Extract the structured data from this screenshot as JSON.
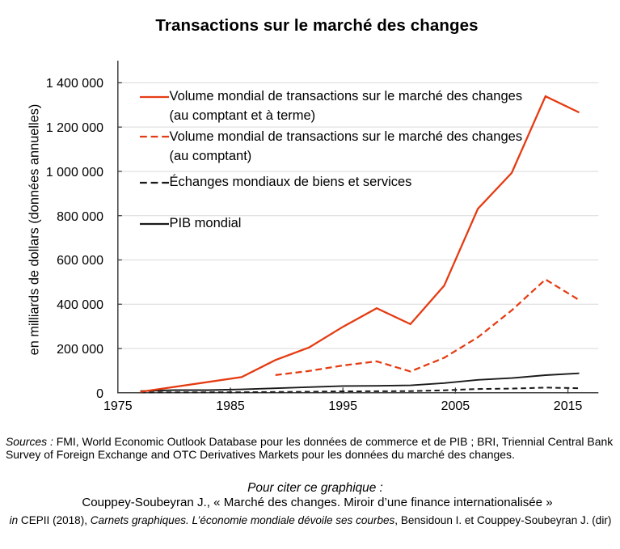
{
  "title": "Transactions sur le marché des changes",
  "colors": {
    "accent_red": "#e53b12",
    "black_line": "#1a1a1a",
    "axis": "#404040",
    "gridline": "#d9d9d9",
    "text": "#000000"
  },
  "y_axis": {
    "label": "en milliards de dollars (données annuelles)",
    "tick_labels": [
      "0",
      "200 000",
      "400 000",
      "600 000",
      "800 000",
      "1 000 000",
      "1 200 000",
      "1 400 000"
    ]
  },
  "x_axis": {
    "tick_labels": [
      "1975",
      "1985",
      "1995",
      "2005",
      "2015"
    ]
  },
  "legend": [
    {
      "lines": [
        "Volume mondial de transactions sur le marché des changes",
        "(au comptant et à terme)"
      ],
      "style": "solid",
      "color": "#e53b12"
    },
    {
      "lines": [
        "Volume mondial de transactions sur le marché des changes",
        "(au comptant)"
      ],
      "style": "dashed",
      "color": "#e53b12"
    },
    {
      "lines": [
        "Échanges mondiaux de biens et services"
      ],
      "style": "dashed",
      "color": "#1a1a1a"
    },
    {
      "lines": [
        "PIB mondial"
      ],
      "style": "solid",
      "color": "#1a1a1a"
    }
  ],
  "footer": {
    "sources_line1_parts": [
      {
        "text": "Sources : ",
        "italic": true
      },
      {
        "text": "FMI, World Economic Outlook Database pour les données de commerce et de PIB ; BRI, Triennial Central Bank",
        "italic": false
      }
    ],
    "sources_line2_parts": [
      {
        "text": "Survey of Foreign Exchange and OTC Derivatives Markets pour les données du marché des changes.",
        "italic": false
      }
    ],
    "cite_heading": "Pour citer ce graphique :",
    "cite_line1": "Couppey-Soubeyran J., « Marché des changes. Miroir d’une finance internationalisée »",
    "cite_line2_parts": [
      {
        "text": "in ",
        "italic": true
      },
      {
        "text": "CEPII (2018), ",
        "italic": false
      },
      {
        "text": "Carnets graphiques. L’économie mondiale dévoile ses courbes",
        "italic": true
      },
      {
        "text": ", Bensidoun I. et Couppey-Soubeyran J. (dir)",
        "italic": false
      }
    ]
  },
  "chart_data": {
    "type": "line",
    "title": "Transactions sur le marché des changes",
    "xlabel": "",
    "ylabel": "en milliards de dollars (données annuelles)",
    "unit": "milliards de dollars",
    "ylim": [
      0,
      1500000
    ],
    "ytick_step": 200000,
    "xlim": [
      1975,
      2017.7
    ],
    "xticks": [
      1975,
      1985,
      1995,
      2005,
      2015
    ],
    "grid": "horizontal",
    "legend_position": "top-left-inside",
    "series": [
      {
        "name": "Échanges mondiaux de biens et services",
        "color": "#1a1a1a",
        "dash": "dashed",
        "width": 2.0,
        "points": [
          [
            1977,
            1300
          ],
          [
            1980,
            2300
          ],
          [
            1983,
            2200
          ],
          [
            1986,
            2700
          ],
          [
            1989,
            3700
          ],
          [
            1992,
            4800
          ],
          [
            1995,
            6400
          ],
          [
            1998,
            6900
          ],
          [
            2001,
            7600
          ],
          [
            2004,
            11200
          ],
          [
            2007,
            17300
          ],
          [
            2010,
            19000
          ],
          [
            2013,
            23400
          ],
          [
            2016,
            20700
          ]
        ]
      },
      {
        "name": "PIB mondial",
        "color": "#1a1a1a",
        "dash": "solid",
        "width": 1.9,
        "points": [
          [
            1977,
            7500
          ],
          [
            1980,
            12000
          ],
          [
            1983,
            12100
          ],
          [
            1986,
            15500
          ],
          [
            1989,
            20500
          ],
          [
            1992,
            25500
          ],
          [
            1995,
            30800
          ],
          [
            1998,
            31500
          ],
          [
            2001,
            33500
          ],
          [
            2004,
            44000
          ],
          [
            2007,
            58500
          ],
          [
            2010,
            66500
          ],
          [
            2013,
            79500
          ],
          [
            2016,
            88000
          ]
        ]
      },
      {
        "name": "Volume mondial de transactions sur le marché des changes (au comptant)",
        "color": "#e53b12",
        "dash": "dashed",
        "width": 2.25,
        "points": [
          [
            1989,
            80000
          ],
          [
            1992,
            98500
          ],
          [
            1995,
            123500
          ],
          [
            1998,
            142000
          ],
          [
            2001,
            96500
          ],
          [
            2004,
            158000
          ],
          [
            2007,
            251000
          ],
          [
            2010,
            372000
          ],
          [
            2013,
            512000
          ],
          [
            2016,
            419000
          ]
        ]
      },
      {
        "name": "Volume mondial de transactions sur le marché des changes (au comptant et à terme)",
        "color": "#e53b12",
        "dash": "solid",
        "width": 2.3,
        "points": [
          [
            1977,
            4500
          ],
          [
            1986,
            71000
          ],
          [
            1989,
            148000
          ],
          [
            1992,
            205000
          ],
          [
            1995,
            298000
          ],
          [
            1998,
            382000
          ],
          [
            2001,
            310000
          ],
          [
            2004,
            484000
          ],
          [
            2007,
            831000
          ],
          [
            2010,
            993000
          ],
          [
            2013,
            1339000
          ],
          [
            2016,
            1266000
          ]
        ]
      }
    ]
  }
}
